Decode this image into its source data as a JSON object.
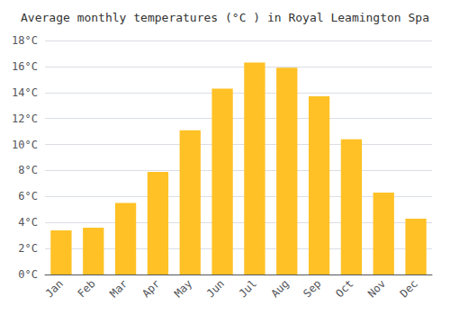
{
  "chart_data": {
    "type": "bar",
    "title": "Average monthly temperatures (°C ) in Royal Leamington Spa",
    "categories": [
      "Jan",
      "Feb",
      "Mar",
      "Apr",
      "May",
      "Jun",
      "Jul",
      "Aug",
      "Sep",
      "Oct",
      "Nov",
      "Dec"
    ],
    "values": [
      3.4,
      3.6,
      5.5,
      7.9,
      11.1,
      14.3,
      16.3,
      15.9,
      13.7,
      10.4,
      6.3,
      4.3
    ],
    "color": "#FFC125",
    "ylim": [
      0,
      18
    ],
    "yticks": [
      {
        "value": 0,
        "label": "0°C"
      },
      {
        "value": 2,
        "label": "2°C"
      },
      {
        "value": 4,
        "label": "4°C"
      },
      {
        "value": 6,
        "label": "6°C"
      },
      {
        "value": 8,
        "label": "8°C"
      },
      {
        "value": 10,
        "label": "10°C"
      },
      {
        "value": 12,
        "label": "12°C"
      },
      {
        "value": 14,
        "label": "14°C"
      },
      {
        "value": 16,
        "label": "16°C"
      },
      {
        "value": 18,
        "label": "18°C"
      }
    ],
    "grid": true
  }
}
